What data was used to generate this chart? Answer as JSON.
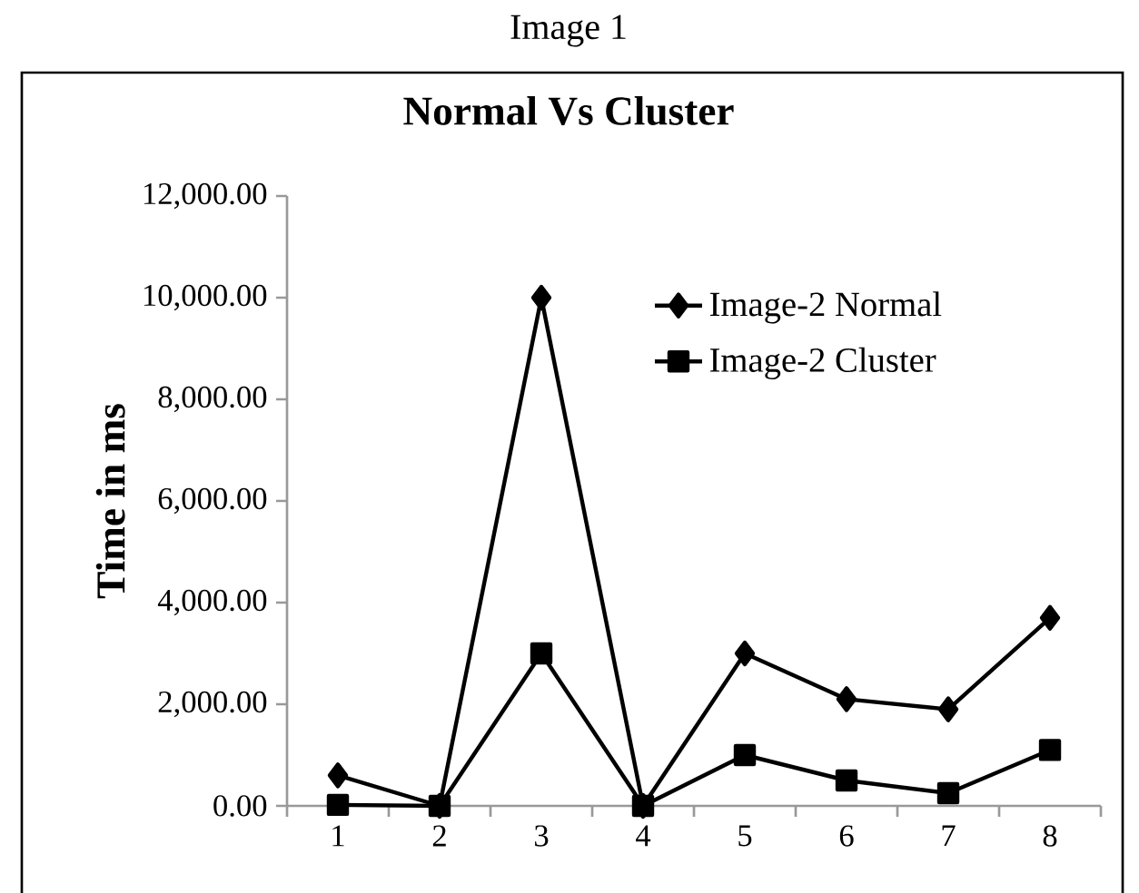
{
  "chart_data": {
    "type": "line",
    "title": "Image 1",
    "subtitle": "Normal Vs Cluster",
    "ylabel": "Time in ms",
    "categories": [
      "1",
      "2",
      "3",
      "4",
      "5",
      "6",
      "7",
      "8"
    ],
    "series": [
      {
        "name": "Image-2 Normal",
        "color": "#000000",
        "marker": "diamond",
        "values": [
          600,
          0,
          10000,
          0,
          3000,
          2100,
          1900,
          3700
        ]
      },
      {
        "name": "Image-2 Cluster",
        "color": "#000000",
        "marker": "square",
        "values": [
          20,
          0,
          3000,
          0,
          1000,
          500,
          250,
          1100
        ]
      }
    ],
    "ylim": [
      0,
      12000
    ],
    "yticks": [
      {
        "value": 0,
        "label": "0.00"
      },
      {
        "value": 2000,
        "label": "2,000.00"
      },
      {
        "value": 4000,
        "label": "4,000.00"
      },
      {
        "value": 6000,
        "label": "6,000.00"
      },
      {
        "value": 8000,
        "label": "8,000.00"
      },
      {
        "value": 10000,
        "label": "10,000.00"
      },
      {
        "value": 12000,
        "label": "12,000.00"
      }
    ],
    "grid": false,
    "legend": "top right",
    "line_style": "solid"
  }
}
